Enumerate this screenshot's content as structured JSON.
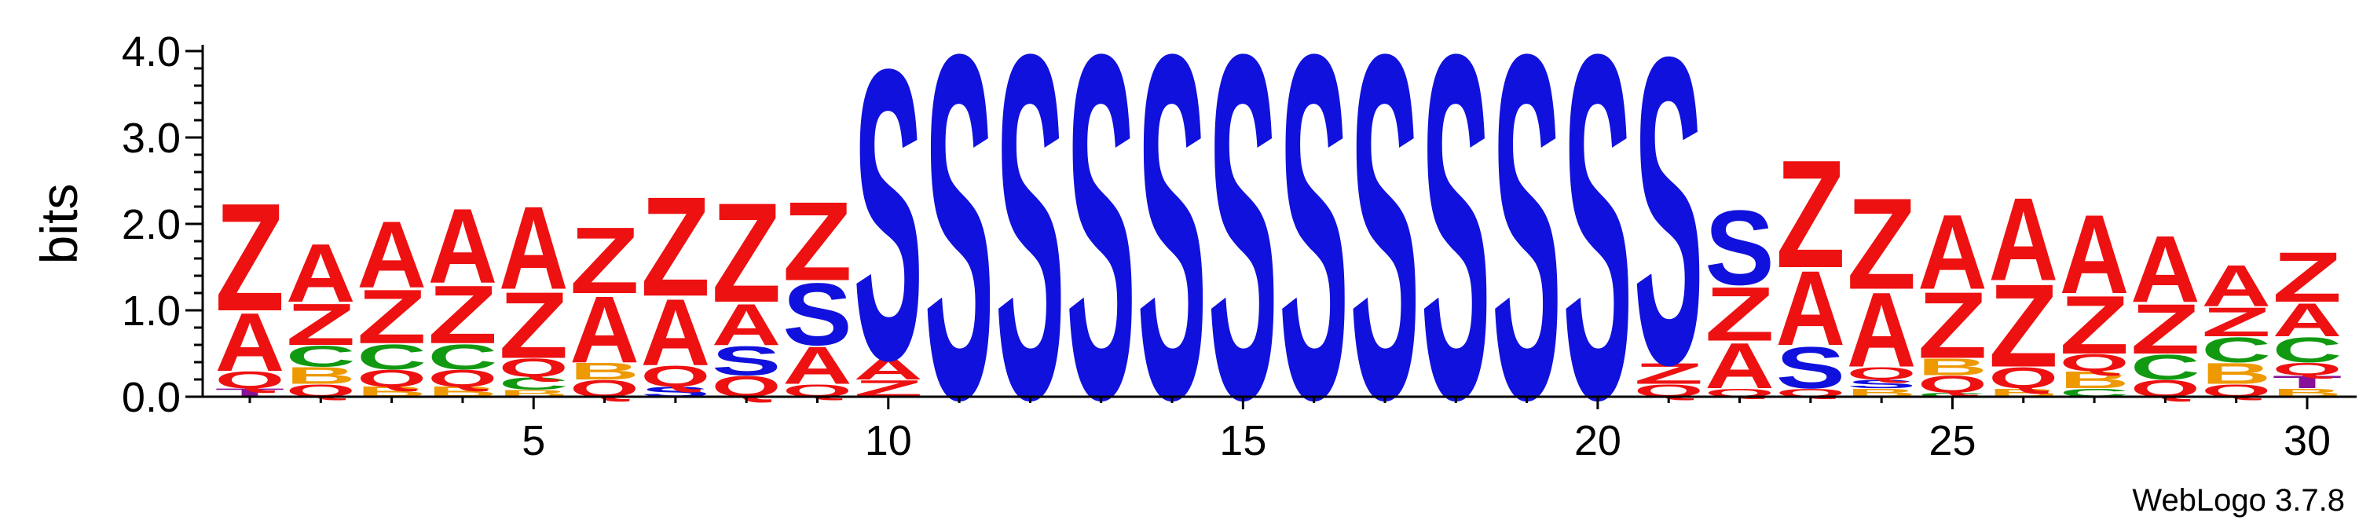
{
  "chart_data": {
    "type": "sequence-logo",
    "ylabel": "bits",
    "ylim": [
      0,
      4.0
    ],
    "y_ticks": [
      "0.0",
      "1.0",
      "2.0",
      "3.0",
      "4.0"
    ],
    "x_ticks": [
      "5",
      "10",
      "15",
      "20",
      "25",
      "30"
    ],
    "x_tick_positions": [
      5,
      10,
      15,
      20,
      25,
      30
    ],
    "credit": "WebLogo 3.7.8",
    "colors": {
      "Z": "#ee1111",
      "A": "#ee1111",
      "Q": "#ee1111",
      "S": "#1111dd",
      "C": "#119911",
      "B": "#ee9900",
      "T": "#881199"
    },
    "positions": [
      {
        "pos": 1,
        "stack": [
          {
            "letter": "T",
            "bits": 0.1
          },
          {
            "letter": "Q",
            "bits": 0.2
          },
          {
            "letter": "A",
            "bits": 0.7
          },
          {
            "letter": "Z",
            "bits": 1.3
          }
        ]
      },
      {
        "pos": 2,
        "stack": [
          {
            "letter": "Q",
            "bits": 0.15
          },
          {
            "letter": "B",
            "bits": 0.2
          },
          {
            "letter": "C",
            "bits": 0.25
          },
          {
            "letter": "Z",
            "bits": 0.5
          },
          {
            "letter": "A",
            "bits": 0.7
          }
        ]
      },
      {
        "pos": 3,
        "stack": [
          {
            "letter": "B",
            "bits": 0.12
          },
          {
            "letter": "Q",
            "bits": 0.2
          },
          {
            "letter": "C",
            "bits": 0.3
          },
          {
            "letter": "Z",
            "bits": 0.65
          },
          {
            "letter": "A",
            "bits": 0.8
          }
        ]
      },
      {
        "pos": 4,
        "stack": [
          {
            "letter": "B",
            "bits": 0.12
          },
          {
            "letter": "Q",
            "bits": 0.2
          },
          {
            "letter": "C",
            "bits": 0.3
          },
          {
            "letter": "Z",
            "bits": 0.7
          },
          {
            "letter": "A",
            "bits": 0.9
          }
        ]
      },
      {
        "pos": 5,
        "stack": [
          {
            "letter": "B",
            "bits": 0.08
          },
          {
            "letter": "C",
            "bits": 0.15
          },
          {
            "letter": "Q",
            "bits": 0.22
          },
          {
            "letter": "Z",
            "bits": 0.8
          },
          {
            "letter": "A",
            "bits": 1.0
          }
        ]
      },
      {
        "pos": 6,
        "stack": [
          {
            "letter": "Q",
            "bits": 0.2
          },
          {
            "letter": "B",
            "bits": 0.2
          },
          {
            "letter": "A",
            "bits": 0.8
          },
          {
            "letter": "Z",
            "bits": 0.8
          }
        ]
      },
      {
        "pos": 7,
        "stack": [
          {
            "letter": "S",
            "bits": 0.12
          },
          {
            "letter": "Q",
            "bits": 0.25
          },
          {
            "letter": "A",
            "bits": 0.8
          },
          {
            "letter": "Z",
            "bits": 1.2
          }
        ]
      },
      {
        "pos": 8,
        "stack": [
          {
            "letter": "Q",
            "bits": 0.25
          },
          {
            "letter": "S",
            "bits": 0.35
          },
          {
            "letter": "A",
            "bits": 0.5
          },
          {
            "letter": "Z",
            "bits": 1.2
          }
        ]
      },
      {
        "pos": 9,
        "stack": [
          {
            "letter": "Q",
            "bits": 0.15
          },
          {
            "letter": "A",
            "bits": 0.45
          },
          {
            "letter": "S",
            "bits": 0.75
          },
          {
            "letter": "Z",
            "bits": 0.95
          }
        ]
      },
      {
        "pos": 10,
        "stack": [
          {
            "letter": "Z",
            "bits": 0.2
          },
          {
            "letter": "A",
            "bits": 0.25
          },
          {
            "letter": "S",
            "bits": 3.5
          }
        ]
      },
      {
        "pos": 11,
        "stack": [
          {
            "letter": "S",
            "bits": 4.15
          }
        ]
      },
      {
        "pos": 12,
        "stack": [
          {
            "letter": "S",
            "bits": 4.15
          }
        ]
      },
      {
        "pos": 13,
        "stack": [
          {
            "letter": "S",
            "bits": 4.15
          }
        ]
      },
      {
        "pos": 14,
        "stack": [
          {
            "letter": "S",
            "bits": 4.15
          }
        ]
      },
      {
        "pos": 15,
        "stack": [
          {
            "letter": "S",
            "bits": 4.15
          }
        ]
      },
      {
        "pos": 16,
        "stack": [
          {
            "letter": "S",
            "bits": 4.15
          }
        ]
      },
      {
        "pos": 17,
        "stack": [
          {
            "letter": "S",
            "bits": 4.15
          }
        ]
      },
      {
        "pos": 18,
        "stack": [
          {
            "letter": "S",
            "bits": 4.15
          }
        ]
      },
      {
        "pos": 19,
        "stack": [
          {
            "letter": "S",
            "bits": 4.15
          }
        ]
      },
      {
        "pos": 20,
        "stack": [
          {
            "letter": "S",
            "bits": 4.15
          }
        ]
      },
      {
        "pos": 21,
        "stack": [
          {
            "letter": "Q",
            "bits": 0.15
          },
          {
            "letter": "Z",
            "bits": 0.25
          },
          {
            "letter": "S",
            "bits": 3.7
          }
        ]
      },
      {
        "pos": 22,
        "stack": [
          {
            "letter": "Q",
            "bits": 0.1
          },
          {
            "letter": "A",
            "bits": 0.55
          },
          {
            "letter": "Z",
            "bits": 0.65
          },
          {
            "letter": "S",
            "bits": 0.9
          }
        ]
      },
      {
        "pos": 23,
        "stack": [
          {
            "letter": "Q",
            "bits": 0.1
          },
          {
            "letter": "S",
            "bits": 0.5
          },
          {
            "letter": "A",
            "bits": 0.9
          },
          {
            "letter": "Z",
            "bits": 1.3
          }
        ]
      },
      {
        "pos": 24,
        "stack": [
          {
            "letter": "B",
            "bits": 0.1
          },
          {
            "letter": "S",
            "bits": 0.1
          },
          {
            "letter": "Q",
            "bits": 0.15
          },
          {
            "letter": "A",
            "bits": 0.9
          },
          {
            "letter": "Z",
            "bits": 1.1
          }
        ]
      },
      {
        "pos": 25,
        "stack": [
          {
            "letter": "C",
            "bits": 0.05
          },
          {
            "letter": "Q",
            "bits": 0.2
          },
          {
            "letter": "B",
            "bits": 0.2
          },
          {
            "letter": "Z",
            "bits": 0.8
          },
          {
            "letter": "A",
            "bits": 0.9
          }
        ]
      },
      {
        "pos": 26,
        "stack": [
          {
            "letter": "B",
            "bits": 0.1
          },
          {
            "letter": "Q",
            "bits": 0.25
          },
          {
            "letter": "Z",
            "bits": 1.0
          },
          {
            "letter": "A",
            "bits": 1.0
          }
        ]
      },
      {
        "pos": 27,
        "stack": [
          {
            "letter": "C",
            "bits": 0.1
          },
          {
            "letter": "B",
            "bits": 0.2
          },
          {
            "letter": "Q",
            "bits": 0.2
          },
          {
            "letter": "Z",
            "bits": 0.7
          },
          {
            "letter": "A",
            "bits": 0.95
          }
        ]
      },
      {
        "pos": 28,
        "stack": [
          {
            "letter": "Q",
            "bits": 0.2
          },
          {
            "letter": "C",
            "bits": 0.3
          },
          {
            "letter": "Z",
            "bits": 0.6
          },
          {
            "letter": "A",
            "bits": 0.8
          }
        ]
      },
      {
        "pos": 29,
        "stack": [
          {
            "letter": "Q",
            "bits": 0.15
          },
          {
            "letter": "B",
            "bits": 0.25
          },
          {
            "letter": "C",
            "bits": 0.3
          },
          {
            "letter": "Z",
            "bits": 0.35
          },
          {
            "letter": "A",
            "bits": 0.5
          }
        ]
      },
      {
        "pos": 30,
        "stack": [
          {
            "letter": "B",
            "bits": 0.1
          },
          {
            "letter": "T",
            "bits": 0.15
          },
          {
            "letter": "Q",
            "bits": 0.15
          },
          {
            "letter": "C",
            "bits": 0.3
          },
          {
            "letter": "A",
            "bits": 0.4
          },
          {
            "letter": "Z",
            "bits": 0.6
          }
        ]
      }
    ]
  }
}
